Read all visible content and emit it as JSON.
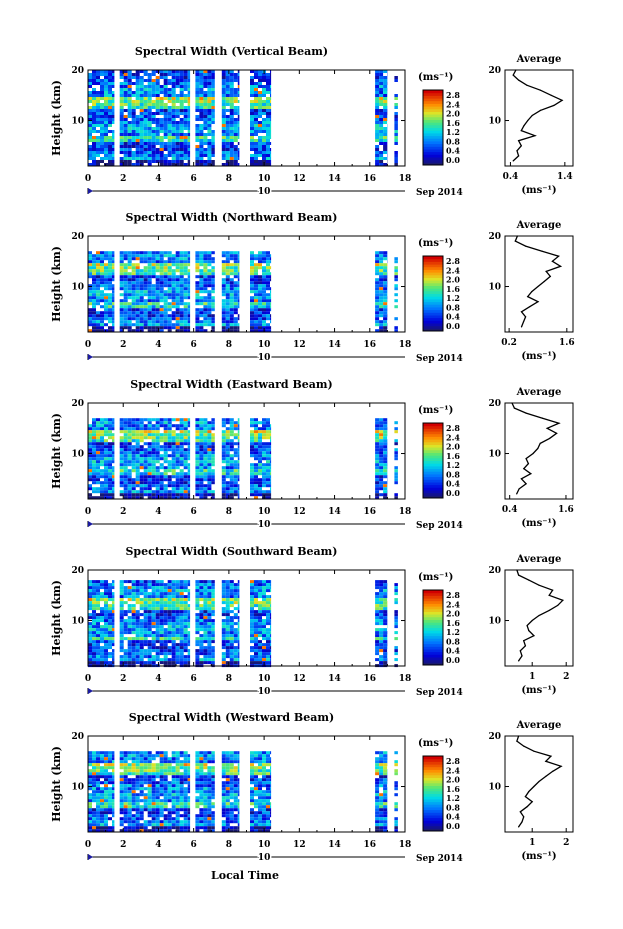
{
  "figure": {
    "xlabel": "Local Time",
    "date_label": "Sep 2014",
    "day_label": "10",
    "unit_label": "(ms⁻¹)",
    "avg_title": "Average",
    "avg_xlabel": "(ms⁻¹)"
  },
  "chart_data": [
    {
      "type": "heatmap",
      "title": "Spectral Width (Vertical Beam)",
      "xlabel": "Local Time",
      "ylabel": "Height (km)",
      "xlim": [
        0,
        18
      ],
      "ylim": [
        1,
        20
      ],
      "x_ticks": [
        "0",
        "2",
        "4",
        "6",
        "8",
        "10",
        "12",
        "14",
        "16",
        "18"
      ],
      "y_ticks": [
        "10",
        "20"
      ],
      "colorbar_label": "(ms⁻¹)",
      "colorbar_ticks": [
        "0.0",
        "0.4",
        "0.8",
        "1.2",
        "1.6",
        "2.0",
        "2.4",
        "2.8"
      ],
      "colorbar_range": [
        0,
        2.8
      ],
      "data_segments": [
        [
          0,
          1.5
        ],
        [
          1.8,
          5.8
        ],
        [
          6.1,
          7.2
        ],
        [
          7.6,
          8.6
        ],
        [
          9.2,
          10.4
        ],
        [
          16.3,
          17.0
        ],
        [
          17.4,
          17.6
        ]
      ],
      "data_top_km": 20
    },
    {
      "type": "heatmap",
      "title": "Spectral Width (Northward Beam)",
      "xlabel": "Local Time",
      "ylabel": "Height (km)",
      "xlim": [
        0,
        18
      ],
      "ylim": [
        1,
        20
      ],
      "x_ticks": [
        "0",
        "2",
        "4",
        "6",
        "8",
        "10",
        "12",
        "14",
        "16",
        "18"
      ],
      "y_ticks": [
        "10",
        "20"
      ],
      "colorbar_label": "(ms⁻¹)",
      "colorbar_ticks": [
        "0.0",
        "0.4",
        "0.8",
        "1.2",
        "1.6",
        "2.0",
        "2.4",
        "2.8"
      ],
      "colorbar_range": [
        0,
        2.8
      ],
      "data_segments": [
        [
          0,
          1.5
        ],
        [
          1.8,
          5.8
        ],
        [
          6.1,
          7.2
        ],
        [
          7.6,
          8.6
        ],
        [
          9.2,
          10.4
        ],
        [
          16.3,
          17.0
        ],
        [
          17.4,
          17.6
        ]
      ],
      "data_top_km": 17
    },
    {
      "type": "heatmap",
      "title": "Spectral Width (Eastward Beam)",
      "xlabel": "Local Time",
      "ylabel": "Height (km)",
      "xlim": [
        0,
        18
      ],
      "ylim": [
        1,
        20
      ],
      "x_ticks": [
        "0",
        "2",
        "4",
        "6",
        "8",
        "10",
        "12",
        "14",
        "16",
        "18"
      ],
      "y_ticks": [
        "10",
        "20"
      ],
      "colorbar_label": "(ms⁻¹)",
      "colorbar_ticks": [
        "0.0",
        "0.4",
        "0.8",
        "1.2",
        "1.6",
        "2.0",
        "2.4",
        "2.8"
      ],
      "colorbar_range": [
        0,
        2.8
      ],
      "data_segments": [
        [
          0,
          1.5
        ],
        [
          1.8,
          5.8
        ],
        [
          6.1,
          7.2
        ],
        [
          7.6,
          8.6
        ],
        [
          9.2,
          10.4
        ],
        [
          16.3,
          17.0
        ],
        [
          17.4,
          17.6
        ]
      ],
      "data_top_km": 17
    },
    {
      "type": "heatmap",
      "title": "Spectral Width (Southward Beam)",
      "xlabel": "Local Time",
      "ylabel": "Height (km)",
      "xlim": [
        0,
        18
      ],
      "ylim": [
        1,
        20
      ],
      "x_ticks": [
        "0",
        "2",
        "4",
        "6",
        "8",
        "10",
        "12",
        "14",
        "16",
        "18"
      ],
      "y_ticks": [
        "10",
        "20"
      ],
      "colorbar_label": "(ms⁻¹)",
      "colorbar_ticks": [
        "0.0",
        "0.4",
        "0.8",
        "1.2",
        "1.6",
        "2.0",
        "2.4",
        "2.8"
      ],
      "colorbar_range": [
        0,
        2.8
      ],
      "data_segments": [
        [
          0,
          1.5
        ],
        [
          1.8,
          5.8
        ],
        [
          6.1,
          7.2
        ],
        [
          7.6,
          8.6
        ],
        [
          9.2,
          10.4
        ],
        [
          16.3,
          17.0
        ],
        [
          17.4,
          17.6
        ]
      ],
      "data_top_km": 18
    },
    {
      "type": "heatmap",
      "title": "Spectral Width (Westward Beam)",
      "xlabel": "Local Time",
      "ylabel": "Height (km)",
      "xlim": [
        0,
        18
      ],
      "ylim": [
        1,
        20
      ],
      "x_ticks": [
        "0",
        "2",
        "4",
        "6",
        "8",
        "10",
        "12",
        "14",
        "16",
        "18"
      ],
      "y_ticks": [
        "10",
        "20"
      ],
      "colorbar_label": "(ms⁻¹)",
      "colorbar_ticks": [
        "0.0",
        "0.4",
        "0.8",
        "1.2",
        "1.6",
        "2.0",
        "2.4",
        "2.8"
      ],
      "colorbar_range": [
        0,
        2.8
      ],
      "data_segments": [
        [
          0,
          1.5
        ],
        [
          1.8,
          5.8
        ],
        [
          6.1,
          7.2
        ],
        [
          7.6,
          8.6
        ],
        [
          9.2,
          10.4
        ],
        [
          16.3,
          17.0
        ],
        [
          17.4,
          17.6
        ]
      ],
      "data_top_km": 17
    },
    {
      "type": "line",
      "title": "Average",
      "xlabel": "(ms⁻¹)",
      "x_ticks": [
        "0.4",
        "1.4"
      ],
      "x_tick_values": [
        0.4,
        1.4
      ],
      "xlim": [
        0.3,
        1.55
      ],
      "ylim": [
        1,
        20
      ],
      "y_ticks": [
        "10",
        "20"
      ],
      "profile": [
        [
          0.45,
          2
        ],
        [
          0.55,
          3
        ],
        [
          0.52,
          4
        ],
        [
          0.6,
          5
        ],
        [
          0.55,
          6
        ],
        [
          0.85,
          7
        ],
        [
          0.6,
          8
        ],
        [
          0.65,
          9
        ],
        [
          0.72,
          10
        ],
        [
          0.8,
          11
        ],
        [
          0.95,
          12
        ],
        [
          1.2,
          13
        ],
        [
          1.35,
          14
        ],
        [
          1.15,
          15
        ],
        [
          0.95,
          16
        ],
        [
          0.7,
          17
        ],
        [
          0.55,
          18
        ],
        [
          0.45,
          19
        ],
        [
          0.5,
          20
        ]
      ]
    },
    {
      "type": "line",
      "title": "Average",
      "xlabel": "(ms⁻¹)",
      "x_ticks": [
        "0.2",
        "1.6"
      ],
      "x_tick_values": [
        0.2,
        1.6
      ],
      "xlim": [
        0.1,
        1.75
      ],
      "ylim": [
        1,
        20
      ],
      "y_ticks": [
        "10",
        "20"
      ],
      "profile": [
        [
          0.5,
          2
        ],
        [
          0.55,
          3
        ],
        [
          0.6,
          4
        ],
        [
          0.5,
          5
        ],
        [
          0.7,
          6
        ],
        [
          0.9,
          7
        ],
        [
          0.65,
          8
        ],
        [
          0.75,
          9
        ],
        [
          0.9,
          10
        ],
        [
          1.05,
          11
        ],
        [
          1.2,
          12
        ],
        [
          1.1,
          13
        ],
        [
          1.45,
          14
        ],
        [
          1.25,
          15
        ],
        [
          1.4,
          16
        ],
        [
          1.0,
          17
        ],
        [
          0.6,
          18
        ],
        [
          0.35,
          19
        ],
        [
          0.4,
          20
        ]
      ]
    },
    {
      "type": "line",
      "title": "Average",
      "xlabel": "(ms⁻¹)",
      "x_ticks": [
        "0.4",
        "1.6"
      ],
      "x_tick_values": [
        0.4,
        1.6
      ],
      "xlim": [
        0.3,
        1.75
      ],
      "ylim": [
        1,
        20
      ],
      "y_ticks": [
        "10",
        "20"
      ],
      "profile": [
        [
          0.55,
          2
        ],
        [
          0.6,
          3
        ],
        [
          0.75,
          4
        ],
        [
          0.65,
          5
        ],
        [
          0.85,
          6
        ],
        [
          0.7,
          7
        ],
        [
          0.8,
          8
        ],
        [
          0.75,
          9
        ],
        [
          0.9,
          10
        ],
        [
          1.0,
          11
        ],
        [
          1.05,
          12
        ],
        [
          1.25,
          13
        ],
        [
          1.4,
          14
        ],
        [
          1.2,
          15
        ],
        [
          1.45,
          16
        ],
        [
          1.1,
          17
        ],
        [
          0.75,
          18
        ],
        [
          0.5,
          19
        ],
        [
          0.45,
          20
        ]
      ]
    },
    {
      "type": "line",
      "title": "Average",
      "xlabel": "(ms⁻¹)",
      "x_ticks": [
        "1",
        "2"
      ],
      "x_tick_values": [
        1,
        2
      ],
      "xlim": [
        0.2,
        2.2
      ],
      "ylim": [
        1,
        20
      ],
      "y_ticks": [
        "10",
        "20"
      ],
      "profile": [
        [
          0.6,
          2
        ],
        [
          0.7,
          3
        ],
        [
          0.65,
          4
        ],
        [
          0.8,
          5
        ],
        [
          0.75,
          6
        ],
        [
          1.05,
          7
        ],
        [
          0.9,
          8
        ],
        [
          0.85,
          9
        ],
        [
          1.0,
          10
        ],
        [
          1.2,
          11
        ],
        [
          1.5,
          12
        ],
        [
          1.75,
          13
        ],
        [
          1.9,
          14
        ],
        [
          1.5,
          15
        ],
        [
          1.6,
          16
        ],
        [
          1.2,
          17
        ],
        [
          0.9,
          18
        ],
        [
          0.6,
          19
        ],
        [
          0.55,
          20
        ]
      ]
    },
    {
      "type": "line",
      "title": "Average",
      "xlabel": "(ms⁻¹)",
      "x_ticks": [
        "1",
        "2"
      ],
      "x_tick_values": [
        1,
        2
      ],
      "xlim": [
        0.2,
        2.2
      ],
      "ylim": [
        1,
        20
      ],
      "y_ticks": [
        "10",
        "20"
      ],
      "profile": [
        [
          0.6,
          2
        ],
        [
          0.7,
          3
        ],
        [
          0.75,
          4
        ],
        [
          0.65,
          5
        ],
        [
          0.85,
          6
        ],
        [
          1.0,
          7
        ],
        [
          0.8,
          8
        ],
        [
          0.9,
          9
        ],
        [
          1.05,
          10
        ],
        [
          1.2,
          11
        ],
        [
          1.4,
          12
        ],
        [
          1.6,
          13
        ],
        [
          1.85,
          14
        ],
        [
          1.4,
          15
        ],
        [
          1.55,
          16
        ],
        [
          1.05,
          17
        ],
        [
          0.75,
          18
        ],
        [
          0.55,
          19
        ],
        [
          0.6,
          20
        ]
      ]
    }
  ]
}
